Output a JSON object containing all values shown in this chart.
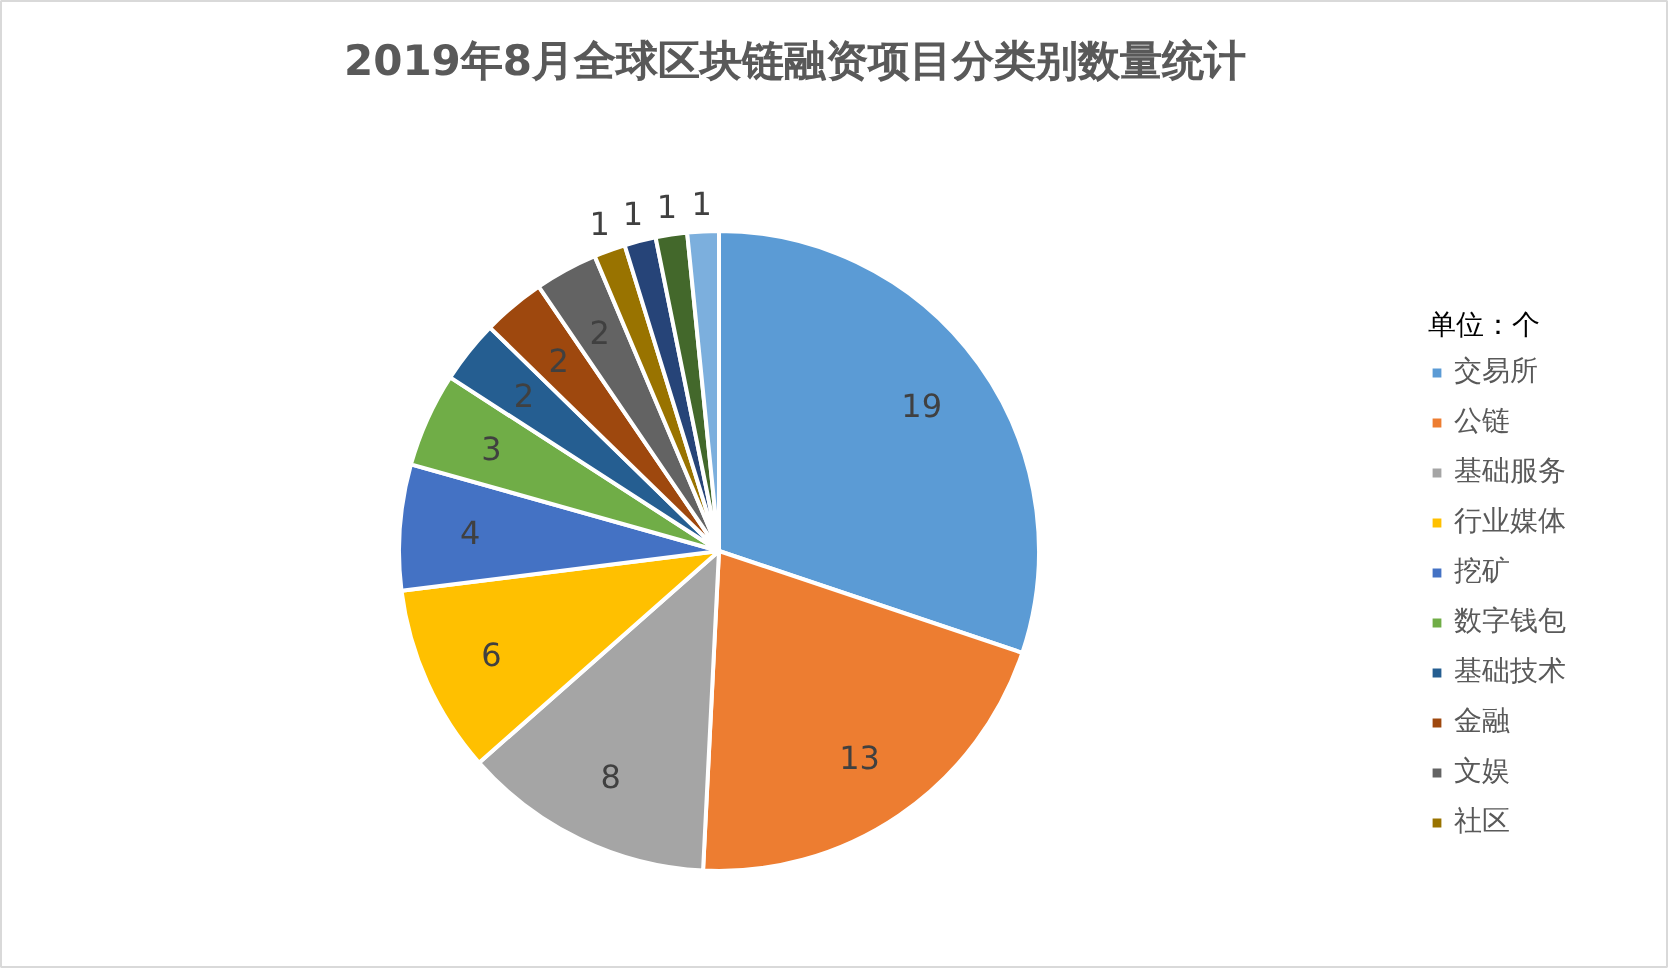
{
  "chart_data": {
    "type": "pie",
    "title": "2019年8月全球区块链融资项目分类别数量统计",
    "legend_title": "单位：个",
    "categories": [
      "交易所",
      "公链",
      "基础服务",
      "行业媒体",
      "挖矿",
      "数字钱包",
      "基础技术",
      "金融",
      "文娱",
      "社区",
      null,
      null,
      null
    ],
    "values": [
      19,
      13,
      8,
      6,
      4,
      3,
      2,
      2,
      2,
      1,
      1,
      1,
      1
    ],
    "colors": [
      "#5b9bd5",
      "#ed7d31",
      "#a5a5a5",
      "#ffc000",
      "#4472c4",
      "#70ad47",
      "#255e91",
      "#9e480e",
      "#636363",
      "#997300",
      "#264478",
      "#43682b",
      "#7cafdd"
    ],
    "data_labels": true,
    "legend": "right"
  }
}
